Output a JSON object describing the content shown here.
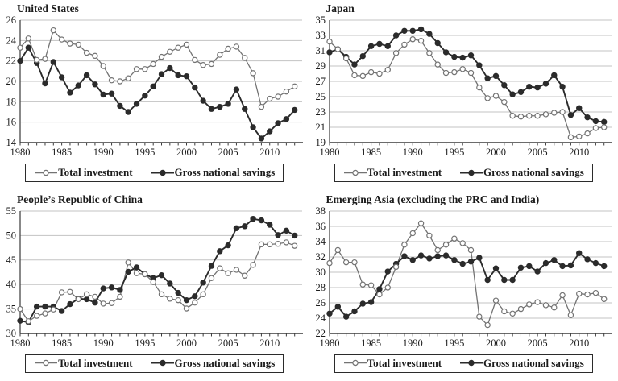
{
  "colors": {
    "total_investment": "#737373",
    "gross_national_savings": "#2b2b2b",
    "gridline": "#c3c3c3",
    "axis": "#3a3a3a",
    "text": "#1b1b1b",
    "marker_open_fill": "#ffffff",
    "background": "#ffffff"
  },
  "legend": {
    "total_investment_label": "Total investment",
    "gross_national_savings_label": "Gross national savings"
  },
  "chart_data": [
    {
      "type": "line",
      "title": "United States",
      "x_start": 1980,
      "x_end": 2013,
      "xticks": [
        1980,
        1985,
        1990,
        1995,
        2000,
        2005,
        2010
      ],
      "ylim": [
        14,
        26
      ],
      "ytick_step": 2,
      "grid": true,
      "legend_position": "bottom",
      "xlabel": "",
      "ylabel": "",
      "series": [
        {
          "name": "Total investment",
          "key": "total_investment",
          "marker": "open",
          "color": "#737373",
          "values": [
            23.3,
            24.2,
            22.1,
            22.2,
            25.0,
            24.1,
            23.7,
            23.6,
            22.8,
            22.5,
            21.5,
            20.1,
            20.0,
            20.3,
            21.2,
            21.2,
            21.7,
            22.4,
            22.9,
            23.3,
            23.6,
            22.1,
            21.6,
            21.7,
            22.6,
            23.2,
            23.4,
            22.3,
            20.8,
            17.5,
            18.3,
            18.5,
            19.0,
            19.5
          ]
        },
        {
          "name": "Gross national savings",
          "key": "gross_national_savings",
          "marker": "filled",
          "color": "#2b2b2b",
          "values": [
            22.0,
            23.3,
            21.8,
            19.8,
            21.9,
            20.4,
            18.9,
            19.6,
            20.6,
            19.7,
            18.7,
            18.8,
            17.6,
            17.0,
            17.8,
            18.6,
            19.5,
            20.7,
            21.3,
            20.6,
            20.5,
            19.4,
            18.1,
            17.3,
            17.5,
            17.8,
            19.2,
            17.3,
            15.5,
            14.4,
            15.1,
            15.9,
            16.3,
            17.2
          ]
        }
      ]
    },
    {
      "type": "line",
      "title": "Japan",
      "x_start": 1980,
      "x_end": 2013,
      "xticks": [
        1980,
        1985,
        1990,
        1995,
        2000,
        2005,
        2010
      ],
      "ylim": [
        19,
        35
      ],
      "ytick_step": 2,
      "grid": true,
      "legend_position": "bottom",
      "xlabel": "",
      "ylabel": "",
      "series": [
        {
          "name": "Total investment",
          "key": "total_investment",
          "marker": "open",
          "color": "#737373",
          "values": [
            32.2,
            31.2,
            30.0,
            27.8,
            27.7,
            28.2,
            28.0,
            28.5,
            30.7,
            31.8,
            32.5,
            32.3,
            30.7,
            29.2,
            28.1,
            28.2,
            28.6,
            28.1,
            26.2,
            24.8,
            25.1,
            24.3,
            22.5,
            22.4,
            22.5,
            22.5,
            22.7,
            22.9,
            23.0,
            19.7,
            19.8,
            20.2,
            20.9,
            21.0
          ]
        },
        {
          "name": "Gross national savings",
          "key": "gross_national_savings",
          "marker": "filled",
          "color": "#2b2b2b",
          "values": [
            30.8,
            31.2,
            30.2,
            29.2,
            30.3,
            31.6,
            31.9,
            31.6,
            33.0,
            33.6,
            33.6,
            33.8,
            33.2,
            32.0,
            30.8,
            30.2,
            30.1,
            30.4,
            29.1,
            27.4,
            27.7,
            26.5,
            25.3,
            25.6,
            26.3,
            26.2,
            26.7,
            27.8,
            26.3,
            22.6,
            23.5,
            22.3,
            21.8,
            21.7
          ]
        }
      ]
    },
    {
      "type": "line",
      "title": "People’s Republic of China",
      "x_start": 1980,
      "x_end": 2013,
      "xticks": [
        1980,
        1985,
        1990,
        1995,
        2000,
        2005,
        2010
      ],
      "ylim": [
        30,
        55
      ],
      "ytick_step": 5,
      "grid": true,
      "legend_position": "bottom",
      "xlabel": "",
      "ylabel": "",
      "series": [
        {
          "name": "Total investment",
          "key": "total_investment",
          "marker": "open",
          "color": "#737373",
          "values": [
            35.0,
            32.5,
            33.6,
            34.1,
            34.9,
            38.4,
            38.5,
            37.0,
            38.0,
            37.5,
            36.1,
            36.2,
            37.5,
            44.5,
            42.3,
            42.1,
            40.5,
            38.0,
            37.1,
            36.8,
            35.1,
            36.3,
            38.0,
            41.3,
            43.3,
            42.3,
            43.0,
            41.8,
            44.0,
            48.2,
            48.2,
            48.3,
            48.6,
            47.9
          ]
        },
        {
          "name": "Gross national savings",
          "key": "gross_national_savings",
          "marker": "filled",
          "color": "#2b2b2b",
          "values": [
            32.6,
            32.3,
            35.5,
            35.5,
            35.5,
            34.6,
            36.0,
            37.1,
            37.0,
            36.3,
            39.2,
            39.4,
            38.9,
            42.6,
            43.5,
            42.1,
            41.3,
            41.9,
            40.2,
            38.3,
            36.8,
            37.6,
            40.4,
            43.8,
            46.8,
            48.0,
            51.5,
            51.9,
            53.4,
            53.1,
            52.2,
            50.1,
            51.0,
            50.0
          ]
        }
      ]
    },
    {
      "type": "line",
      "title": "Emerging Asia (excluding the PRC and India)",
      "x_start": 1980,
      "x_end": 2013,
      "xticks": [
        1980,
        1985,
        1990,
        1995,
        2000,
        2005,
        2010
      ],
      "ylim": [
        22,
        38
      ],
      "ytick_step": 2,
      "grid": true,
      "legend_position": "bottom",
      "xlabel": "",
      "ylabel": "",
      "series": [
        {
          "name": "Total investment",
          "key": "total_investment",
          "marker": "open",
          "color": "#737373",
          "values": [
            31.2,
            32.9,
            31.3,
            31.3,
            28.4,
            28.3,
            27.1,
            28.0,
            30.7,
            33.6,
            35.1,
            36.4,
            34.8,
            32.9,
            33.6,
            34.4,
            33.8,
            32.9,
            24.2,
            23.1,
            26.3,
            24.9,
            24.6,
            25.2,
            25.8,
            26.1,
            25.7,
            25.4,
            27.0,
            24.4,
            27.2,
            27.1,
            27.3,
            26.5
          ]
        },
        {
          "name": "Gross national savings",
          "key": "gross_national_savings",
          "marker": "filled",
          "color": "#2b2b2b",
          "values": [
            24.6,
            25.5,
            24.2,
            24.9,
            25.9,
            26.1,
            27.8,
            30.1,
            31.1,
            32.1,
            31.6,
            32.2,
            31.8,
            32.1,
            32.2,
            31.6,
            31.1,
            31.4,
            31.9,
            29.0,
            30.5,
            29.0,
            29.0,
            30.6,
            30.8,
            30.1,
            31.2,
            31.6,
            30.8,
            30.9,
            32.5,
            31.7,
            31.2,
            30.8
          ]
        }
      ]
    }
  ]
}
